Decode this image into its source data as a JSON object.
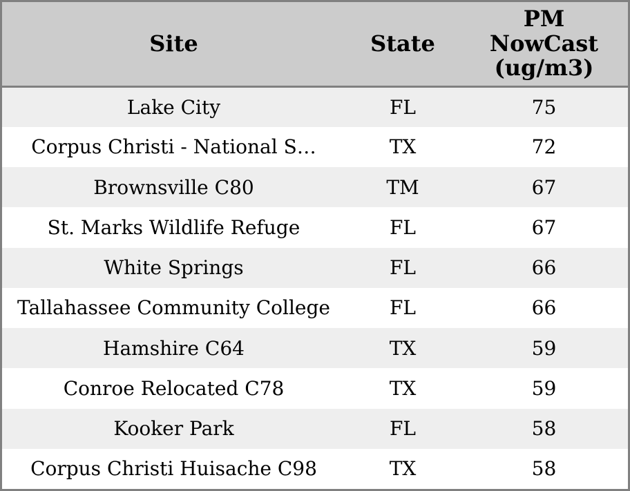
{
  "chart_data": {
    "type": "table",
    "columns": [
      "Site",
      "State",
      "PM NowCast (ug/m3)"
    ],
    "rows": [
      [
        "Lake City",
        "FL",
        75
      ],
      [
        "Corpus Christi - National S…",
        "TX",
        72
      ],
      [
        "Brownsville C80",
        "TM",
        67
      ],
      [
        "St. Marks Wildlife Refuge",
        "FL",
        67
      ],
      [
        "White Springs",
        "FL",
        66
      ],
      [
        "Tallahassee Community College",
        "FL",
        66
      ],
      [
        "Hamshire C64",
        "TX",
        59
      ],
      [
        "Conroe Relocated C78",
        "TX",
        59
      ],
      [
        "Kooker Park",
        "FL",
        58
      ],
      [
        "Corpus Christi Huisache C98",
        "TX",
        58
      ]
    ],
    "layout": {
      "header_row_striped": false,
      "row_stripe_pattern": "odd-rows-shaded",
      "cell_alignment": "center"
    }
  },
  "ui": {
    "header_display": [
      "Site",
      "State",
      "PM\nNowCast\n(ug/m3)"
    ],
    "colors": {
      "header_bg": "#cccccc",
      "row_stripe": "#eeeeee",
      "row_plain": "#ffffff",
      "border": "#808080",
      "text": "#000000"
    }
  }
}
